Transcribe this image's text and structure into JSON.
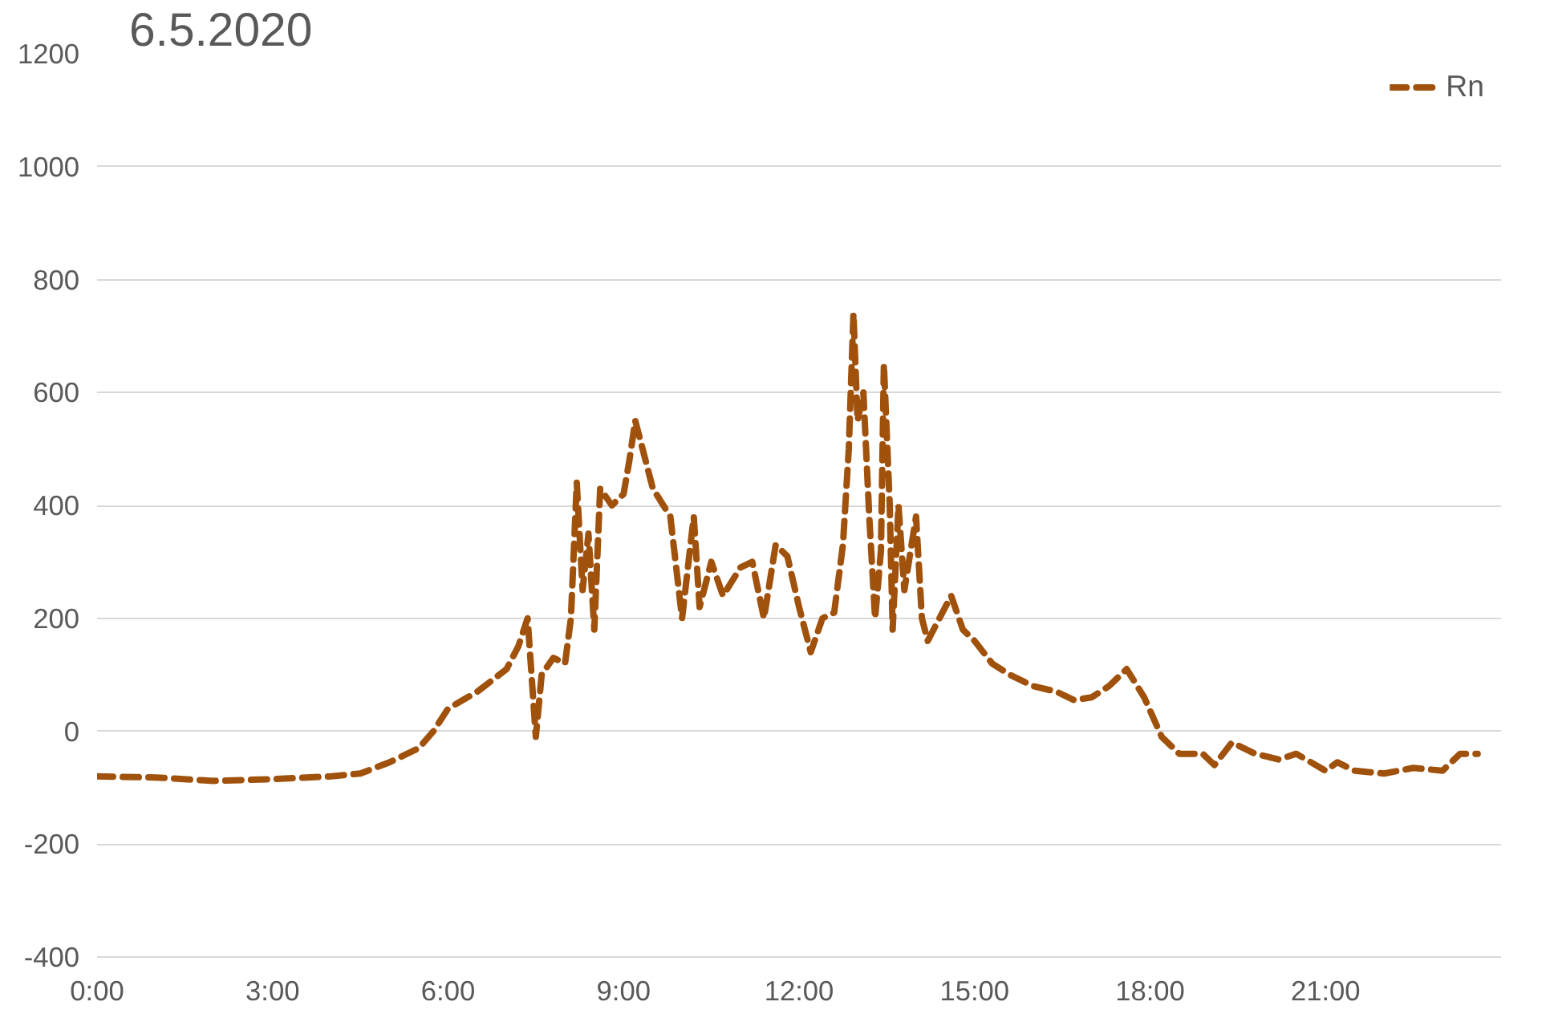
{
  "chart_data": {
    "type": "line",
    "title": "6.5.2020",
    "x": [
      0,
      1,
      2,
      3,
      4,
      4.5,
      5,
      5.5,
      5.75,
      6,
      6.5,
      7,
      7.2,
      7.36,
      7.5,
      7.6,
      7.8,
      8.0,
      8.1,
      8.2,
      8.3,
      8.4,
      8.5,
      8.6,
      8.8,
      9.0,
      9.1,
      9.2,
      9.5,
      9.8,
      10.0,
      10.2,
      10.3,
      10.5,
      10.7,
      11.0,
      11.2,
      11.4,
      11.6,
      11.8,
      12.0,
      12.2,
      12.4,
      12.6,
      12.75,
      12.85,
      12.93,
      13.0,
      13.1,
      13.2,
      13.3,
      13.4,
      13.45,
      13.55,
      13.6,
      13.7,
      13.8,
      14.0,
      14.1,
      14.2,
      14.4,
      14.6,
      14.8,
      15.0,
      15.3,
      15.6,
      16.0,
      16.4,
      16.7,
      17.0,
      17.3,
      17.6,
      17.9,
      18.2,
      18.5,
      18.9,
      19.1,
      19.4,
      19.8,
      20.2,
      20.5,
      21.0,
      21.2,
      21.5,
      22.0,
      22.5,
      23.0,
      23.3,
      23.6
    ],
    "series": [
      {
        "name": "Rn",
        "color": "#a0520d",
        "values": [
          -80,
          -82,
          -88,
          -85,
          -80,
          -75,
          -55,
          -30,
          0,
          40,
          70,
          110,
          150,
          200,
          -10,
          100,
          130,
          120,
          200,
          440,
          250,
          350,
          180,
          430,
          400,
          420,
          480,
          550,
          430,
          380,
          200,
          380,
          220,
          300,
          240,
          290,
          300,
          200,
          330,
          310,
          220,
          140,
          200,
          210,
          330,
          500,
          740,
          550,
          600,
          380,
          200,
          320,
          650,
          400,
          180,
          400,
          250,
          380,
          200,
          160,
          200,
          240,
          180,
          160,
          120,
          100,
          80,
          70,
          55,
          60,
          80,
          110,
          60,
          -10,
          -40,
          -40,
          -60,
          -20,
          -40,
          -50,
          -40,
          -70,
          -55,
          -70,
          -75,
          -65,
          -70,
          -40,
          -40
        ]
      }
    ],
    "xlim": [
      0,
      24
    ],
    "ylim": [
      -400,
      1200
    ],
    "xticks": [
      {
        "value": 0,
        "label": "0:00"
      },
      {
        "value": 3,
        "label": "3:00"
      },
      {
        "value": 6,
        "label": "6:00"
      },
      {
        "value": 9,
        "label": "9:00"
      },
      {
        "value": 12,
        "label": "12:00"
      },
      {
        "value": 15,
        "label": "15:00"
      },
      {
        "value": 18,
        "label": "18:00"
      },
      {
        "value": 21,
        "label": "21:00"
      }
    ],
    "yticks": [
      -400,
      -200,
      0,
      200,
      400,
      600,
      800,
      1000,
      1200
    ],
    "grid": "y",
    "legend": "top right",
    "line_style": "dashed"
  }
}
